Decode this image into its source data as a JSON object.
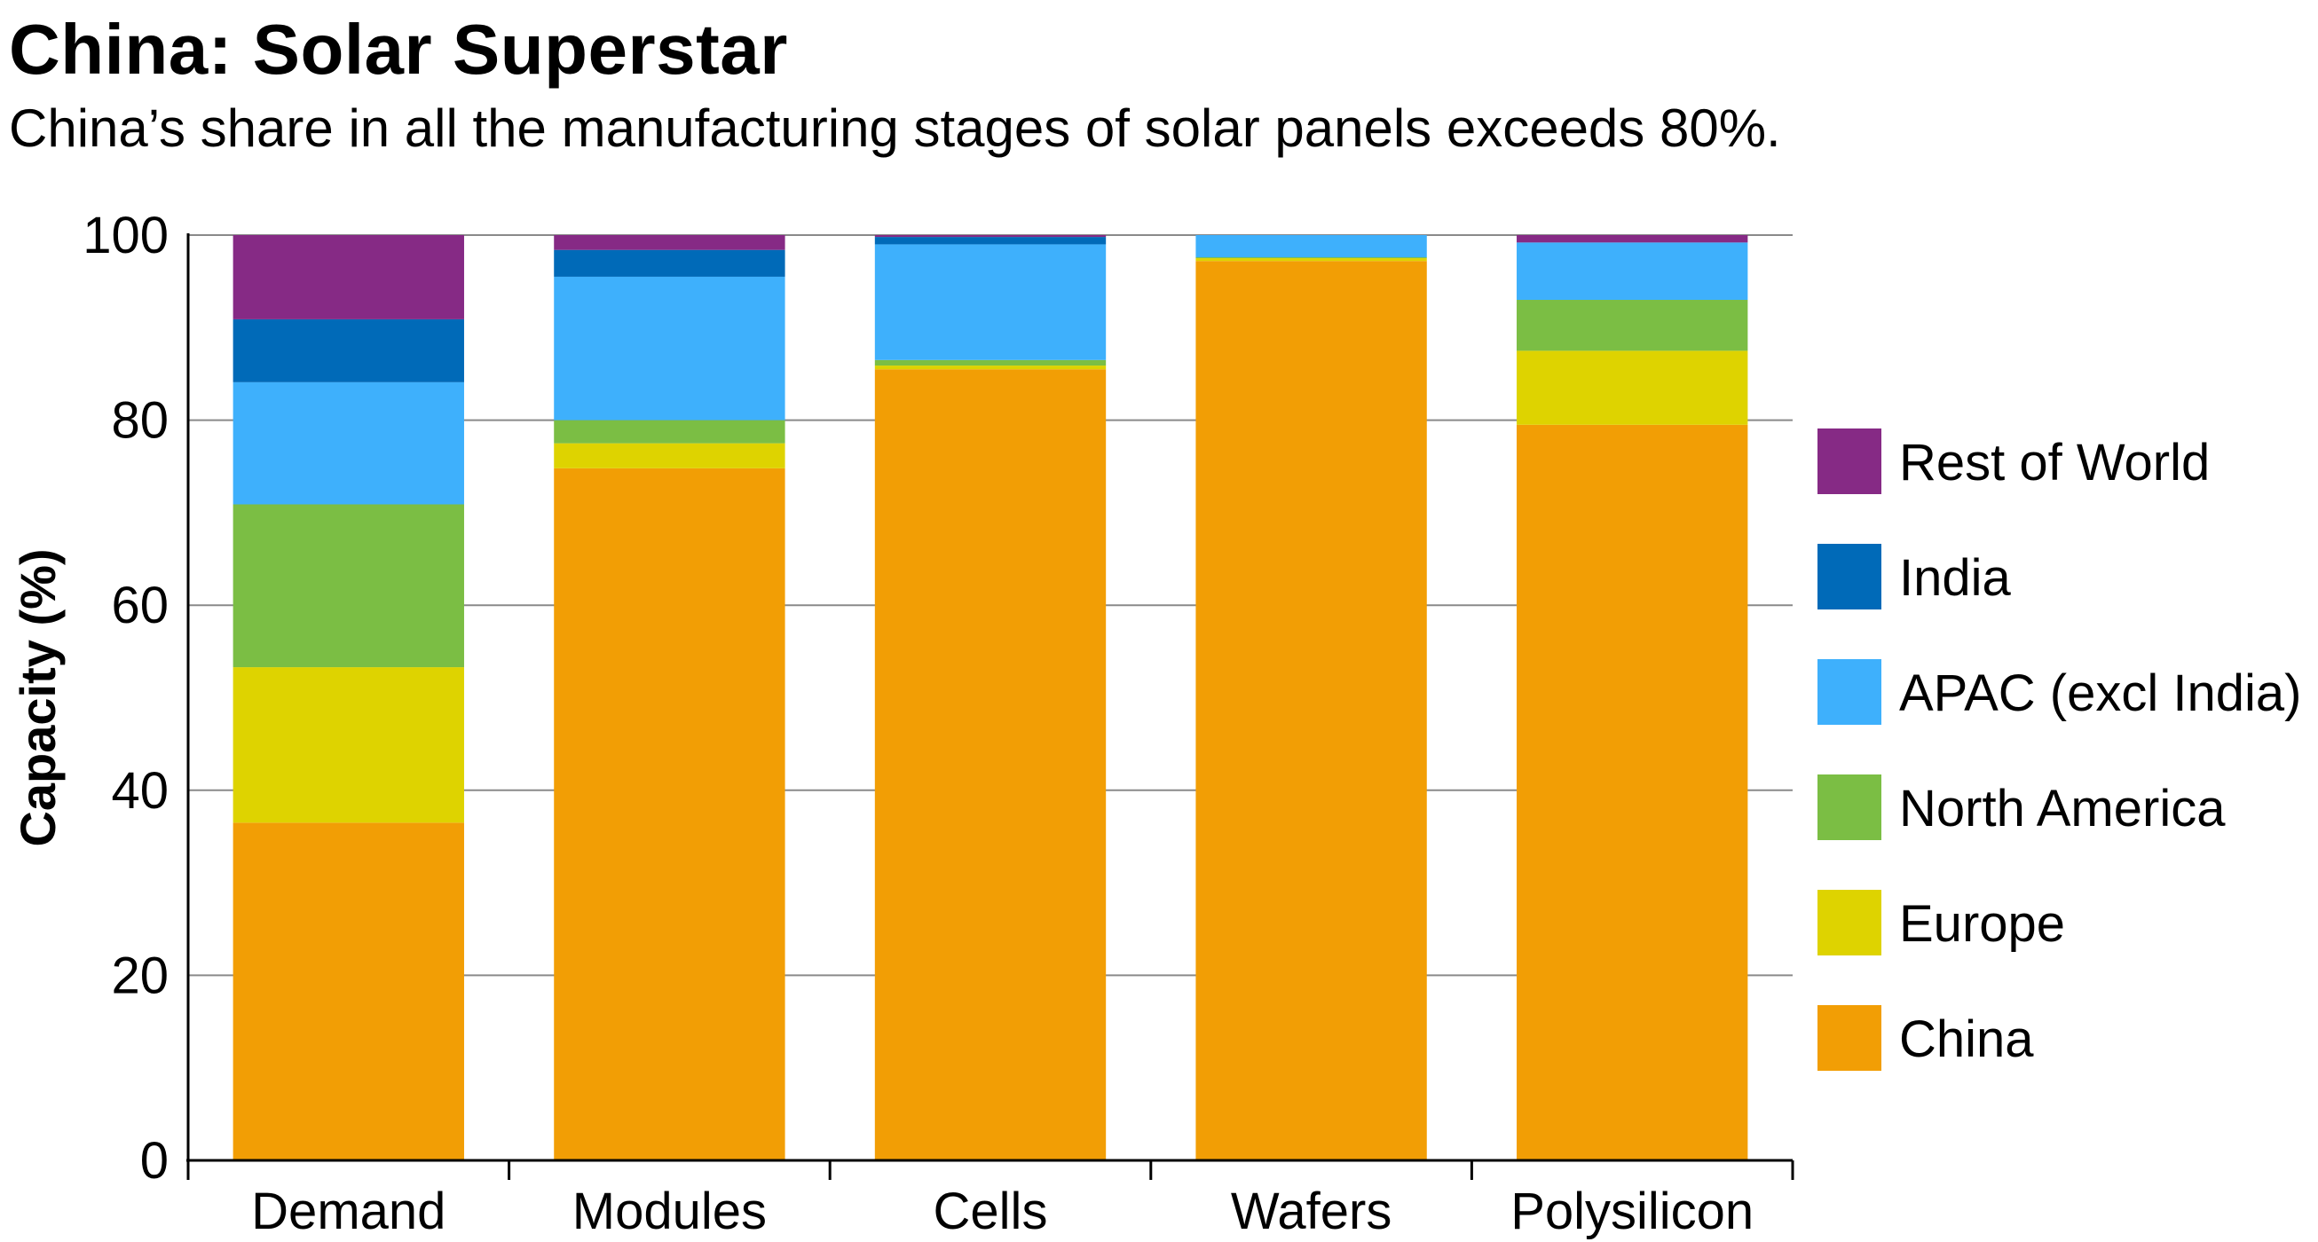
{
  "header": {
    "title": "China: Solar Superstar",
    "subtitle": "China’s share in all the manufacturing stages of solar panels exceeds 80%."
  },
  "chart_data": {
    "type": "bar",
    "stacked": true,
    "title": "China: Solar Superstar",
    "subtitle": "China’s share in all the manufacturing stages of solar panels exceeds 80%.",
    "xlabel": "",
    "ylabel": "Capacity (%)",
    "ylim": [
      0,
      100
    ],
    "yticks": [
      "0",
      "20",
      "40",
      "60",
      "80",
      "100"
    ],
    "grid": true,
    "legend_position": "right",
    "categories": [
      "Demand",
      "Modules",
      "Cells",
      "Wafers",
      "Polysilicon"
    ],
    "series": [
      {
        "name": "China",
        "color": "#f29e05",
        "values": [
          36.5,
          74.8,
          85.5,
          97.2,
          79.5
        ]
      },
      {
        "name": "Europe",
        "color": "#ded300",
        "values": [
          16.8,
          2.7,
          0.4,
          0.3,
          8.0
        ]
      },
      {
        "name": "North America",
        "color": "#7bbe44",
        "values": [
          17.6,
          2.5,
          0.6,
          0.1,
          5.5
        ]
      },
      {
        "name": "APAC (excl India)",
        "color": "#3eb0fc",
        "values": [
          13.2,
          15.5,
          12.5,
          2.4,
          6.2
        ]
      },
      {
        "name": "India",
        "color": "#006ab8",
        "values": [
          6.8,
          2.9,
          0.8,
          0.0,
          0.0
        ]
      },
      {
        "name": "Rest of World",
        "color": "#862a85",
        "values": [
          9.1,
          1.6,
          0.2,
          0.0,
          0.8
        ]
      }
    ],
    "legend_order": [
      "Rest of World",
      "India",
      "APAC (excl India)",
      "North America",
      "Europe",
      "China"
    ]
  }
}
